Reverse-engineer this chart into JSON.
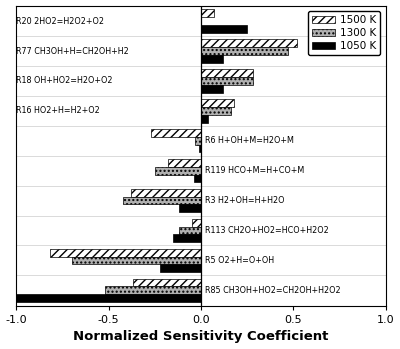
{
  "reactions": [
    "R20 2HO2=H2O2+O2",
    "R77 CH3OH+H=CH2OH+H2",
    "R18 OH+HO2=H2O+O2",
    "R16 HO2+H=H2+O2",
    "R6 H+OH+M=H2O+M",
    "R119 HCO+M=H+CO+M",
    "R3 H2+OH=H+H2O",
    "R113 CH2O+HO2=HCO+H2O2",
    "R5 O2+H=O+OH",
    "R85 CH3OH+HO2=CH2OH+H2O2"
  ],
  "label_side": [
    "left",
    "left",
    "left",
    "left",
    "right",
    "right",
    "right",
    "right",
    "right",
    "right"
  ],
  "values_1500K": [
    0.07,
    0.52,
    0.28,
    0.18,
    -0.27,
    -0.18,
    -0.38,
    -0.05,
    -0.82,
    -0.37
  ],
  "values_1300K": [
    0.0,
    0.47,
    0.28,
    0.16,
    -0.03,
    -0.25,
    -0.42,
    -0.12,
    -0.7,
    -0.52
  ],
  "values_1050K": [
    0.25,
    0.12,
    0.12,
    0.04,
    -0.01,
    -0.04,
    -0.12,
    -0.15,
    -0.22,
    -1.0
  ],
  "xlabel": "Normalized Sensitivity Coefficient",
  "xlim": [
    -1.0,
    1.0
  ],
  "xticks": [
    -1.0,
    -0.5,
    0.0,
    0.5,
    1.0
  ],
  "background_color": "#ffffff"
}
